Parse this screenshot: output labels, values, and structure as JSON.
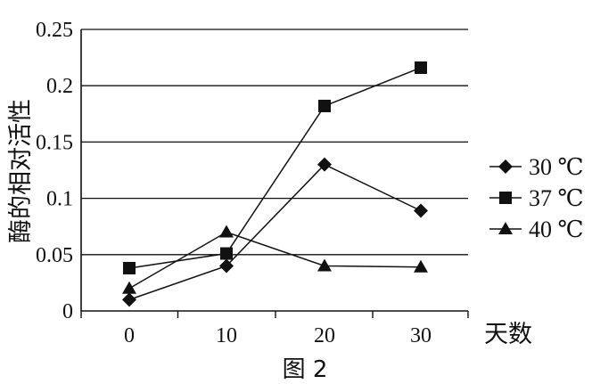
{
  "chart_data": {
    "type": "line",
    "title": "",
    "caption": "图 2",
    "xlabel": "天数",
    "ylabel": "酶的相对活性",
    "x": [
      0,
      10,
      20,
      30
    ],
    "x_tick_labels": [
      "0",
      "10",
      "20",
      "30"
    ],
    "ylim": [
      0,
      0.25
    ],
    "y_ticks": [
      0,
      0.05,
      0.1,
      0.15,
      0.2,
      0.25
    ],
    "y_tick_labels": [
      "0",
      "0.05",
      "0.1",
      "0.15",
      "0.2",
      "0.25"
    ],
    "grid": "horizontal",
    "legend_position": "right",
    "series": [
      {
        "name": "30 ℃",
        "marker": "diamond",
        "values": [
          0.01,
          0.04,
          0.13,
          0.089
        ]
      },
      {
        "name": "37 ℃",
        "marker": "square",
        "values": [
          0.038,
          0.051,
          0.182,
          0.216
        ]
      },
      {
        "name": "40 ℃",
        "marker": "triangle",
        "values": [
          0.02,
          0.07,
          0.04,
          0.039
        ]
      }
    ],
    "colors": {
      "line": "#111111",
      "marker": "#111111",
      "grid": "#111111"
    }
  }
}
